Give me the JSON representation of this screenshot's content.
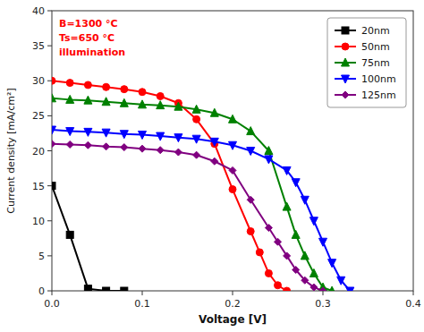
{
  "chart_data": {
    "type": "line",
    "xlabel": "Voltage [V]",
    "ylabel": "Current density [mA/cm²]",
    "annotations": [
      {
        "text": "B=1300 °C\nTs=650 °C\nillumination",
        "color": "red"
      }
    ],
    "xlim": [
      0,
      0.4
    ],
    "ylim": [
      0,
      40
    ],
    "xticks": [
      {
        "value": 0.0,
        "label": "0.0"
      },
      0.1,
      0.2,
      0.3,
      0.4
    ],
    "yticks": [
      0,
      5,
      10,
      15,
      20,
      25,
      30,
      35,
      40
    ],
    "grid": false,
    "legend": "upper right",
    "series": [
      {
        "name": "20nm",
        "color": "black",
        "marker": "square",
        "x": [
          0.0,
          0.02,
          0.04,
          0.06,
          0.08
        ],
        "values": [
          15.0,
          8.0,
          0.3,
          0.0,
          0.0
        ]
      },
      {
        "name": "50nm",
        "color": "red",
        "marker": "circle",
        "x": [
          0.0,
          0.02,
          0.04,
          0.06,
          0.08,
          0.1,
          0.12,
          0.14,
          0.16,
          0.18,
          0.2,
          0.22,
          0.23,
          0.24,
          0.25,
          0.26
        ],
        "values": [
          30.0,
          29.7,
          29.4,
          29.1,
          28.8,
          28.4,
          27.8,
          26.8,
          24.5,
          21.0,
          14.5,
          8.5,
          5.5,
          2.5,
          0.8,
          0.0
        ]
      },
      {
        "name": "75nm",
        "color": "green",
        "marker": "triangle-up",
        "x": [
          0.0,
          0.02,
          0.04,
          0.06,
          0.08,
          0.1,
          0.12,
          0.14,
          0.16,
          0.18,
          0.2,
          0.22,
          0.24,
          0.26,
          0.27,
          0.28,
          0.29,
          0.3,
          0.31
        ],
        "values": [
          27.5,
          27.3,
          27.2,
          27.0,
          26.8,
          26.6,
          26.5,
          26.3,
          25.9,
          25.4,
          24.5,
          22.8,
          20.0,
          12.0,
          8.0,
          5.0,
          2.5,
          0.5,
          0.0
        ]
      },
      {
        "name": "100nm",
        "color": "blue",
        "marker": "triangle-down",
        "x": [
          0.0,
          0.02,
          0.04,
          0.06,
          0.08,
          0.1,
          0.12,
          0.14,
          0.16,
          0.18,
          0.2,
          0.22,
          0.24,
          0.26,
          0.27,
          0.28,
          0.29,
          0.3,
          0.31,
          0.32,
          0.33
        ],
        "values": [
          23.0,
          22.8,
          22.7,
          22.6,
          22.4,
          22.3,
          22.1,
          21.9,
          21.7,
          21.3,
          20.8,
          20.0,
          18.8,
          17.2,
          15.5,
          13.0,
          10.0,
          7.0,
          4.0,
          1.5,
          0.0
        ]
      },
      {
        "name": "125nm",
        "color": "purple",
        "marker": "diamond",
        "x": [
          0.0,
          0.02,
          0.04,
          0.06,
          0.08,
          0.1,
          0.12,
          0.14,
          0.16,
          0.18,
          0.2,
          0.22,
          0.24,
          0.25,
          0.26,
          0.27,
          0.28,
          0.29,
          0.3
        ],
        "values": [
          21.0,
          20.9,
          20.8,
          20.6,
          20.5,
          20.3,
          20.1,
          19.8,
          19.4,
          18.5,
          17.2,
          13.0,
          9.0,
          7.0,
          5.0,
          3.0,
          1.5,
          0.5,
          0.0
        ]
      }
    ]
  }
}
